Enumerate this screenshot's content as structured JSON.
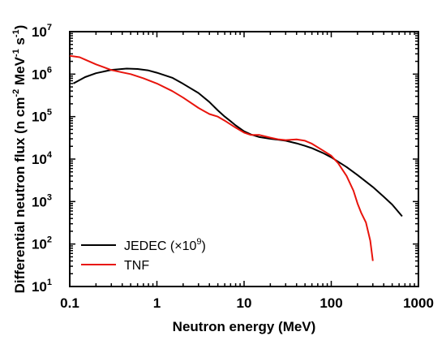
{
  "chart_data": {
    "type": "line",
    "xlabel": "Neutron energy (MeV)",
    "ylabel": {
      "main": "Differential neutron flux (n cm",
      "sup1": "-2",
      "mid1": " MeV",
      "sup2": "-1",
      "mid2": " s",
      "sup3": "-1",
      "end": ")"
    },
    "x_scale": "log",
    "y_scale": "log",
    "xlim": [
      0.1,
      1000
    ],
    "ylim": [
      10,
      10000000
    ],
    "x_ticks": [
      {
        "value": 0.1,
        "label": "0.1"
      },
      {
        "value": 1,
        "label": "1"
      },
      {
        "value": 10,
        "label": "10"
      },
      {
        "value": 100,
        "label": "100"
      },
      {
        "value": 1000,
        "label": "1000"
      }
    ],
    "y_ticks": [
      {
        "value": 10,
        "base": "10",
        "exp": "1"
      },
      {
        "value": 100,
        "base": "10",
        "exp": "2"
      },
      {
        "value": 1000,
        "base": "10",
        "exp": "3"
      },
      {
        "value": 10000,
        "base": "10",
        "exp": "4"
      },
      {
        "value": 100000,
        "base": "10",
        "exp": "5"
      },
      {
        "value": 1000000,
        "base": "10",
        "exp": "6"
      },
      {
        "value": 10000000,
        "base": "10",
        "exp": "7"
      }
    ],
    "legend": {
      "position": "bottom-left",
      "entries": [
        {
          "series": "JEDEC",
          "main": "JEDEC (×10",
          "sup": "9",
          "end": ")"
        },
        {
          "series": "TNF",
          "main": "TNF",
          "sup": "",
          "end": ""
        }
      ]
    },
    "series": [
      {
        "name": "JEDEC",
        "color": "#000000",
        "x": [
          0.11,
          0.15,
          0.2,
          0.3,
          0.45,
          0.6,
          0.8,
          1.0,
          1.5,
          2,
          3,
          4,
          5,
          6,
          7,
          8,
          10,
          12,
          15,
          20,
          25,
          30,
          40,
          50,
          60,
          80,
          100,
          150,
          200,
          300,
          400,
          500,
          650
        ],
        "y": [
          600000,
          850000,
          1050000,
          1260000,
          1350000,
          1320000,
          1220000,
          1080000,
          820000,
          590000,
          360000,
          220000,
          140000,
          100000,
          78000,
          62000,
          45000,
          38000,
          33000,
          30000,
          28500,
          27000,
          23500,
          20500,
          18000,
          14000,
          11000,
          6500,
          4200,
          2200,
          1300,
          850,
          450
        ]
      },
      {
        "name": "TNF",
        "color": "#e8140c",
        "x": [
          0.1,
          0.13,
          0.15,
          0.2,
          0.3,
          0.4,
          0.5,
          0.7,
          1.0,
          1.5,
          2.0,
          3.0,
          4.0,
          5.0,
          6.0,
          8.0,
          10,
          12,
          15,
          20,
          25,
          30,
          40,
          50,
          60,
          80,
          100,
          120,
          150,
          180,
          200,
          220,
          250,
          280,
          300
        ],
        "y": [
          2700000,
          2500000,
          2200000,
          1700000,
          1250000,
          1100000,
          1000000,
          800000,
          600000,
          400000,
          280000,
          160000,
          115000,
          100000,
          80000,
          55000,
          42000,
          37000,
          37000,
          32000,
          29000,
          28000,
          29000,
          27000,
          23000,
          16000,
          12000,
          8000,
          4000,
          1800,
          900,
          550,
          320,
          120,
          40
        ]
      }
    ]
  }
}
